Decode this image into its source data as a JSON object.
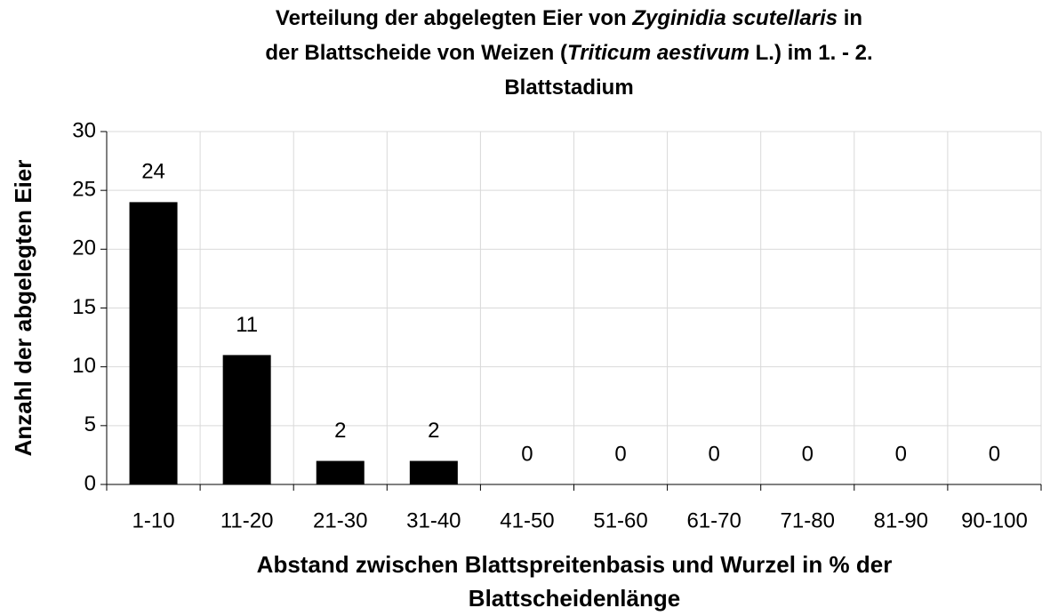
{
  "chart_data": {
    "type": "bar",
    "title": [
      [
        {
          "text": "Verteilung der abgelegten Eier von ",
          "italic": false
        },
        {
          "text": "Zyginidia scutellaris",
          "italic": true
        },
        {
          "text": " in",
          "italic": false
        }
      ],
      [
        {
          "text": "der Blattscheide von Weizen (",
          "italic": false
        },
        {
          "text": "Triticum aestivum",
          "italic": true
        },
        {
          "text": " L.) im 1. -  2.",
          "italic": false
        }
      ],
      [
        {
          "text": "Blattstadium",
          "italic": false
        }
      ]
    ],
    "xlabel": [
      "Abstand zwischen Blattspreitenbasis und Wurzel in % der",
      "Blattscheidenlänge"
    ],
    "ylabel": "Anzahl der abgelegten Eier",
    "categories": [
      "1-10",
      "11-20",
      "21-30",
      "31-40",
      "41-50",
      "51-60",
      "61-70",
      "71-80",
      "81-90",
      "90-100"
    ],
    "values": [
      24,
      11,
      2,
      2,
      0,
      0,
      0,
      0,
      0,
      0
    ],
    "color": "#000000",
    "ylim": [
      0,
      30
    ],
    "yticks": [
      0,
      5,
      10,
      15,
      20,
      25,
      30
    ],
    "grid": true
  }
}
